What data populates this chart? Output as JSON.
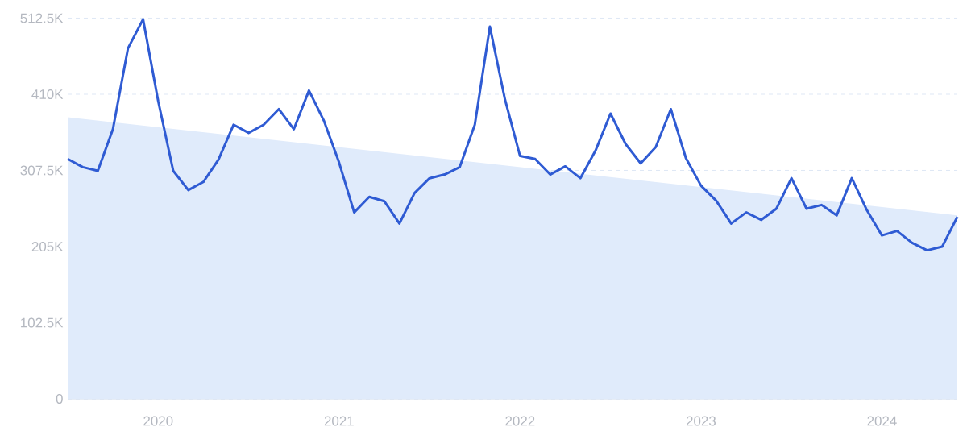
{
  "chart_data": {
    "type": "line",
    "x": [
      "2019-07",
      "2019-08",
      "2019-09",
      "2019-10",
      "2019-11",
      "2019-12",
      "2020-01",
      "2020-02",
      "2020-03",
      "2020-04",
      "2020-05",
      "2020-06",
      "2020-07",
      "2020-08",
      "2020-09",
      "2020-10",
      "2020-11",
      "2020-12",
      "2021-01",
      "2021-02",
      "2021-03",
      "2021-04",
      "2021-05",
      "2021-06",
      "2021-07",
      "2021-08",
      "2021-09",
      "2021-10",
      "2021-11",
      "2021-12",
      "2022-01",
      "2022-02",
      "2022-03",
      "2022-04",
      "2022-05",
      "2022-06",
      "2022-07",
      "2022-08",
      "2022-09",
      "2022-10",
      "2022-11",
      "2022-12",
      "2023-01",
      "2023-02",
      "2023-03",
      "2023-04",
      "2023-05",
      "2023-06",
      "2023-07",
      "2023-08",
      "2023-09",
      "2023-10",
      "2023-11",
      "2023-12",
      "2024-01",
      "2024-02",
      "2024-03",
      "2024-04",
      "2024-05",
      "2024-06"
    ],
    "series": [
      {
        "type": "area",
        "color": "#e0ebfb",
        "x": [
          "2019-07",
          "2024-06"
        ],
        "values": [
          379000,
          247000
        ]
      },
      {
        "color": "#2f5bd3",
        "values": [
          323000,
          312000,
          307000,
          363000,
          472000,
          511000,
          401000,
          307000,
          281000,
          292000,
          322000,
          369000,
          358000,
          369000,
          390000,
          363000,
          415000,
          374000,
          318000,
          251000,
          272000,
          266000,
          236000,
          277000,
          297000,
          302000,
          312000,
          369000,
          501000,
          403000,
          327000,
          323000,
          302000,
          313000,
          297000,
          334000,
          384000,
          343000,
          317000,
          339000,
          390000,
          324000,
          287000,
          267000,
          236000,
          251000,
          241000,
          256000,
          297000,
          256000,
          261000,
          247000,
          297000,
          254000,
          220000,
          226000,
          210000,
          200000,
          205000,
          245000
        ]
      }
    ],
    "xlim": [
      "2019-07",
      "2024-06"
    ],
    "xticks": [
      "2020",
      "2021",
      "2022",
      "2023",
      "2024"
    ],
    "ylim": [
      0,
      512500
    ],
    "yticks": [
      0,
      {
        "value": 102500,
        "label": "102.5K"
      },
      {
        "value": 205000,
        "label": "205K"
      },
      {
        "value": 307500,
        "label": "307.5K"
      },
      {
        "value": 410000,
        "label": "410K"
      },
      {
        "value": 512500,
        "label": "512.5K"
      }
    ],
    "grid": "y"
  }
}
